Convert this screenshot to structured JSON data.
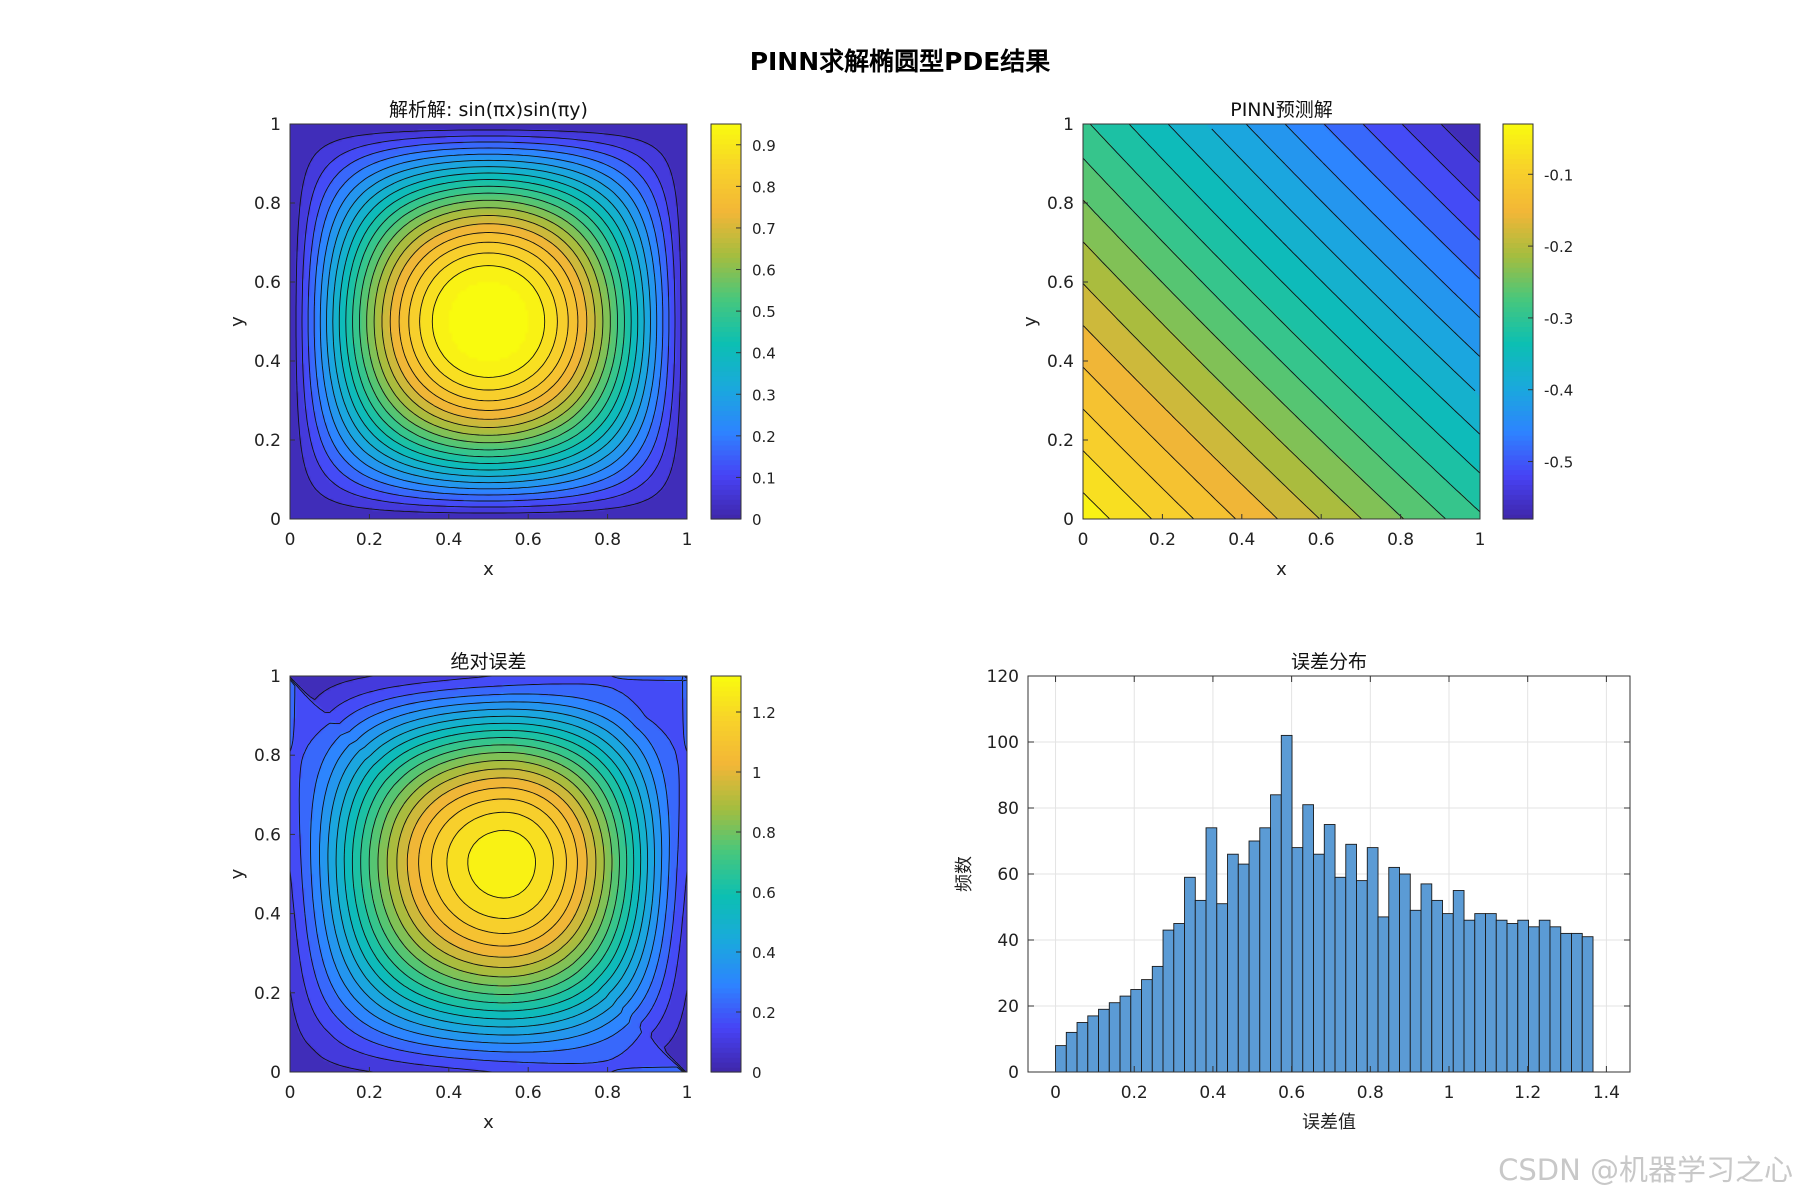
{
  "figure": {
    "title": "PINN求解椭圆型PDE结果",
    "watermark": "CSDN @机器学习之心",
    "colormap": "parula",
    "colormap_stops": [
      "#3e26a8",
      "#4743f5",
      "#2d84ff",
      "#1aa9dc",
      "#0cbfb3",
      "#46c77d",
      "#a4bd3f",
      "#f2b637",
      "#f8d22a",
      "#f9fb0e"
    ]
  },
  "chart_data": [
    {
      "type": "contour",
      "title": "解析解: sin(πx)sin(πy)",
      "xlabel": "x",
      "ylabel": "y",
      "xlim": [
        0,
        1
      ],
      "ylim": [
        0,
        1
      ],
      "xticks": [
        "0",
        "0.2",
        "0.4",
        "0.6",
        "0.8",
        "1"
      ],
      "yticks": [
        "0",
        "0.2",
        "0.4",
        "0.6",
        "0.8",
        "1"
      ],
      "function": "sin(pi*x)*sin(pi*y)",
      "clim": [
        0,
        0.95
      ],
      "colorbar_ticks": [
        "0",
        "0.1",
        "0.2",
        "0.3",
        "0.4",
        "0.5",
        "0.6",
        "0.7",
        "0.8",
        "0.9"
      ],
      "levels": 20
    },
    {
      "type": "contour",
      "title": "PINN预测解",
      "xlabel": "x",
      "ylabel": "y",
      "xlim": [
        0,
        1
      ],
      "ylim": [
        0,
        1
      ],
      "xticks": [
        "0",
        "0.2",
        "0.4",
        "0.6",
        "0.8",
        "1"
      ],
      "yticks": [
        "0",
        "0.2",
        "0.4",
        "0.6",
        "0.8",
        "1"
      ],
      "value_range": [
        -0.58,
        -0.04
      ],
      "value_corners": {
        "x0y0": -0.04,
        "x1y0": -0.3,
        "x0y1": -0.3,
        "x1y1": -0.58
      },
      "clim": [
        -0.58,
        -0.03
      ],
      "colorbar_ticks": [
        "-0.1",
        "-0.2",
        "-0.3",
        "-0.4",
        "-0.5"
      ],
      "levels": 20
    },
    {
      "type": "contour",
      "title": "绝对误差",
      "xlabel": "x",
      "ylabel": "y",
      "xlim": [
        0,
        1
      ],
      "ylim": [
        0,
        1
      ],
      "xticks": [
        "0",
        "0.2",
        "0.4",
        "0.6",
        "0.8",
        "1"
      ],
      "yticks": [
        "0",
        "0.2",
        "0.4",
        "0.6",
        "0.8",
        "1"
      ],
      "peak_location": [
        0.54,
        0.53
      ],
      "value_range": [
        0.02,
        1.3
      ],
      "clim": [
        0,
        1.32
      ],
      "colorbar_ticks": [
        "0",
        "0.2",
        "0.4",
        "0.6",
        "0.8",
        "1",
        "1.2"
      ],
      "levels": 20
    },
    {
      "type": "bar",
      "subtype": "histogram",
      "title": "误差分布",
      "xlabel": "误差值",
      "ylabel": "频数",
      "xlim": [
        -0.07,
        1.46
      ],
      "ylim": [
        0,
        120
      ],
      "xticks": [
        "0",
        "0.2",
        "0.4",
        "0.6",
        "0.8",
        "1",
        "1.2",
        "1.4"
      ],
      "yticks": [
        "0",
        "20",
        "40",
        "60",
        "80",
        "100",
        "120"
      ],
      "grid": true,
      "bar_color": "#5b9bd5",
      "bin_start": 0,
      "bin_width": 0.02732,
      "values": [
        8,
        12,
        15,
        17,
        19,
        21,
        23,
        25,
        28,
        32,
        43,
        45,
        59,
        52,
        74,
        51,
        66,
        63,
        70,
        74,
        84,
        102,
        68,
        81,
        66,
        75,
        59,
        69,
        58,
        68,
        47,
        62,
        60,
        49,
        57,
        52,
        48,
        55,
        46,
        48,
        48,
        46,
        45,
        46,
        44,
        46,
        44,
        42,
        42,
        41
      ]
    }
  ]
}
